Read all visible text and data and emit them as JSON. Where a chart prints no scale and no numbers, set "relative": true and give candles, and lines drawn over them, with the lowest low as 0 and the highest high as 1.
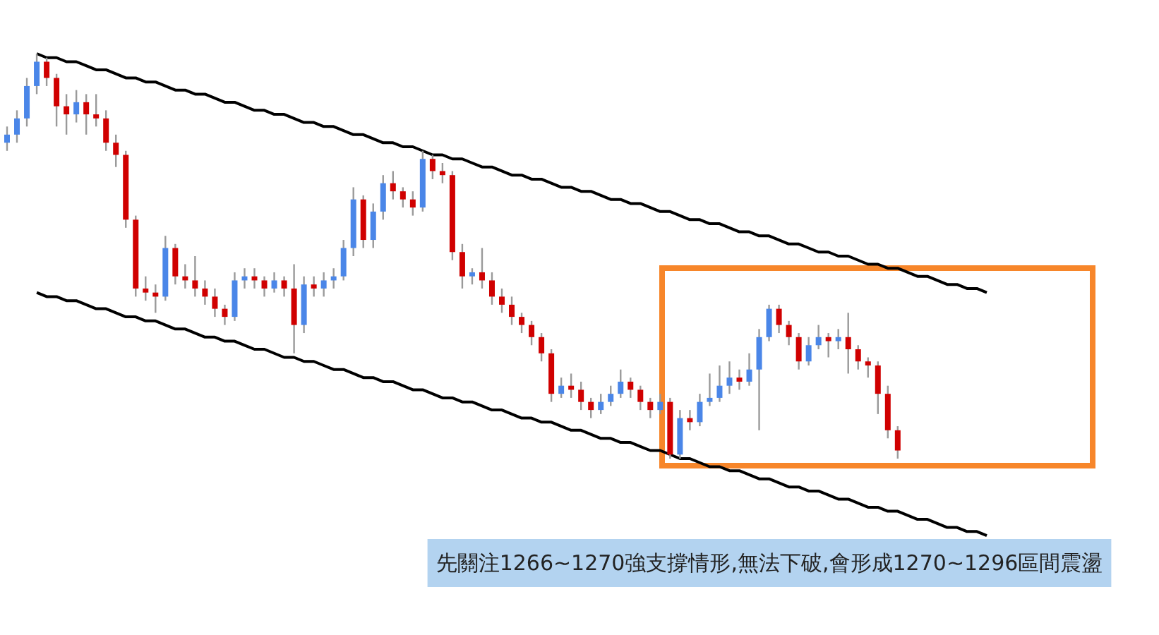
{
  "chart_data": {
    "type": "candlestick",
    "relative": true,
    "categories": [
      null,
      null,
      null,
      null,
      null,
      null,
      null,
      null,
      null,
      null,
      null,
      null,
      null,
      null,
      null,
      null,
      null,
      null,
      null,
      null,
      null,
      null,
      null,
      null,
      null,
      null,
      null,
      null,
      null,
      null,
      null,
      null,
      null,
      null,
      null,
      null,
      null,
      null,
      null,
      null,
      null,
      null,
      null,
      null,
      null,
      null,
      null,
      null,
      null,
      null,
      null,
      null,
      null,
      null,
      null,
      null,
      null,
      null,
      null,
      null,
      null,
      null,
      null,
      null,
      null,
      null,
      null,
      null,
      null,
      null,
      null,
      null,
      null,
      null,
      null,
      null,
      null,
      null,
      null,
      null,
      null,
      null,
      null,
      null,
      null,
      null,
      null,
      null,
      null,
      null,
      null,
      null,
      null,
      null,
      null,
      null,
      null,
      null,
      null,
      null
    ],
    "ohlc": [
      [
        0.78,
        0.82,
        0.76,
        0.8
      ],
      [
        0.8,
        0.86,
        0.78,
        0.84
      ],
      [
        0.84,
        0.94,
        0.82,
        0.92
      ],
      [
        0.92,
        1.0,
        0.9,
        0.98
      ],
      [
        0.98,
        0.99,
        0.92,
        0.94
      ],
      [
        0.94,
        0.95,
        0.82,
        0.87
      ],
      [
        0.87,
        0.9,
        0.8,
        0.85
      ],
      [
        0.85,
        0.91,
        0.83,
        0.88
      ],
      [
        0.88,
        0.9,
        0.8,
        0.85
      ],
      [
        0.85,
        0.9,
        0.82,
        0.84
      ],
      [
        0.84,
        0.86,
        0.76,
        0.78
      ],
      [
        0.78,
        0.8,
        0.72,
        0.75
      ],
      [
        0.75,
        0.76,
        0.57,
        0.59
      ],
      [
        0.59,
        0.6,
        0.4,
        0.42
      ],
      [
        0.42,
        0.45,
        0.39,
        0.41
      ],
      [
        0.41,
        0.43,
        0.36,
        0.4
      ],
      [
        0.4,
        0.55,
        0.39,
        0.52
      ],
      [
        0.52,
        0.53,
        0.43,
        0.45
      ],
      [
        0.45,
        0.48,
        0.42,
        0.44
      ],
      [
        0.44,
        0.5,
        0.4,
        0.42
      ],
      [
        0.42,
        0.44,
        0.38,
        0.4
      ],
      [
        0.4,
        0.42,
        0.35,
        0.37
      ],
      [
        0.37,
        0.38,
        0.33,
        0.35
      ],
      [
        0.35,
        0.46,
        0.34,
        0.44
      ],
      [
        0.44,
        0.47,
        0.42,
        0.45
      ],
      [
        0.45,
        0.47,
        0.42,
        0.44
      ],
      [
        0.44,
        0.45,
        0.4,
        0.42
      ],
      [
        0.42,
        0.46,
        0.41,
        0.44
      ],
      [
        0.44,
        0.45,
        0.4,
        0.42
      ],
      [
        0.42,
        0.48,
        0.26,
        0.33
      ],
      [
        0.33,
        0.45,
        0.31,
        0.43
      ],
      [
        0.43,
        0.45,
        0.4,
        0.42
      ],
      [
        0.42,
        0.46,
        0.4,
        0.44
      ],
      [
        0.44,
        0.47,
        0.42,
        0.45
      ],
      [
        0.45,
        0.54,
        0.44,
        0.52
      ],
      [
        0.52,
        0.67,
        0.5,
        0.64
      ],
      [
        0.64,
        0.65,
        0.52,
        0.54
      ],
      [
        0.54,
        0.63,
        0.52,
        0.61
      ],
      [
        0.61,
        0.7,
        0.59,
        0.68
      ],
      [
        0.68,
        0.71,
        0.64,
        0.66
      ],
      [
        0.66,
        0.67,
        0.62,
        0.64
      ],
      [
        0.64,
        0.66,
        0.6,
        0.62
      ],
      [
        0.62,
        0.76,
        0.61,
        0.74
      ],
      [
        0.74,
        0.75,
        0.69,
        0.71
      ],
      [
        0.71,
        0.73,
        0.68,
        0.7
      ],
      [
        0.7,
        0.71,
        0.49,
        0.51
      ],
      [
        0.51,
        0.53,
        0.42,
        0.45
      ],
      [
        0.45,
        0.47,
        0.43,
        0.46
      ],
      [
        0.46,
        0.52,
        0.42,
        0.44
      ],
      [
        0.44,
        0.46,
        0.38,
        0.4
      ],
      [
        0.4,
        0.42,
        0.36,
        0.38
      ],
      [
        0.38,
        0.4,
        0.33,
        0.35
      ],
      [
        0.35,
        0.36,
        0.31,
        0.33
      ],
      [
        0.33,
        0.34,
        0.28,
        0.3
      ],
      [
        0.3,
        0.31,
        0.24,
        0.26
      ],
      [
        0.26,
        0.27,
        0.14,
        0.16
      ],
      [
        0.16,
        0.2,
        0.15,
        0.18
      ],
      [
        0.18,
        0.21,
        0.15,
        0.17
      ],
      [
        0.17,
        0.19,
        0.12,
        0.14
      ],
      [
        0.14,
        0.15,
        0.1,
        0.12
      ],
      [
        0.12,
        0.16,
        0.11,
        0.14
      ],
      [
        0.14,
        0.18,
        0.13,
        0.16
      ],
      [
        0.16,
        0.22,
        0.15,
        0.19
      ],
      [
        0.19,
        0.2,
        0.15,
        0.17
      ],
      [
        0.17,
        0.18,
        0.12,
        0.14
      ],
      [
        0.14,
        0.15,
        0.1,
        0.12
      ],
      [
        0.12,
        0.16,
        0.11,
        0.14
      ],
      [
        0.14,
        0.15,
        0.0,
        0.01
      ],
      [
        0.01,
        0.12,
        0.0,
        0.1
      ],
      [
        0.1,
        0.12,
        0.07,
        0.09
      ],
      [
        0.09,
        0.16,
        0.08,
        0.14
      ],
      [
        0.14,
        0.21,
        0.13,
        0.15
      ],
      [
        0.15,
        0.23,
        0.14,
        0.18
      ],
      [
        0.18,
        0.24,
        0.16,
        0.2
      ],
      [
        0.2,
        0.22,
        0.17,
        0.19
      ],
      [
        0.19,
        0.26,
        0.18,
        0.22
      ],
      [
        0.22,
        0.32,
        0.07,
        0.3
      ],
      [
        0.3,
        0.38,
        0.29,
        0.37
      ],
      [
        0.37,
        0.38,
        0.31,
        0.33
      ],
      [
        0.33,
        0.34,
        0.28,
        0.3
      ],
      [
        0.3,
        0.31,
        0.22,
        0.24
      ],
      [
        0.24,
        0.3,
        0.23,
        0.28
      ],
      [
        0.28,
        0.33,
        0.27,
        0.3
      ],
      [
        0.3,
        0.31,
        0.25,
        0.29
      ],
      [
        0.29,
        0.32,
        0.27,
        0.3
      ],
      [
        0.3,
        0.36,
        0.21,
        0.27
      ],
      [
        0.27,
        0.28,
        0.22,
        0.24
      ],
      [
        0.24,
        0.25,
        0.2,
        0.23
      ],
      [
        0.23,
        0.24,
        0.11,
        0.16
      ],
      [
        0.16,
        0.18,
        0.05,
        0.07
      ],
      [
        0.07,
        0.08,
        0.0,
        0.02
      ],
      null,
      null,
      null,
      null,
      null,
      null,
      null,
      null,
      null
    ],
    "colors": [
      "#4a86e8",
      "#4a86e8",
      "#4a86e8",
      "#4a86e8",
      "#d00000",
      "#d00000",
      "#d00000",
      "#4a86e8",
      "#d00000",
      "#d00000",
      "#d00000",
      "#d00000",
      "#d00000",
      "#d00000",
      "#d00000",
      "#d00000",
      "#4a86e8",
      "#d00000",
      "#d00000",
      "#d00000",
      "#d00000",
      "#d00000",
      "#d00000",
      "#4a86e8",
      "#4a86e8",
      "#d00000",
      "#d00000",
      "#4a86e8",
      "#d00000",
      "#d00000",
      "#4a86e8",
      "#d00000",
      "#4a86e8",
      "#4a86e8",
      "#4a86e8",
      "#4a86e8",
      "#d00000",
      "#4a86e8",
      "#4a86e8",
      "#d00000",
      "#d00000",
      "#d00000",
      "#4a86e8",
      "#d00000",
      "#d00000",
      "#d00000",
      "#d00000",
      "#4a86e8",
      "#d00000",
      "#d00000",
      "#d00000",
      "#d00000",
      "#d00000",
      "#d00000",
      "#d00000",
      "#d00000",
      "#4a86e8",
      "#d00000",
      "#d00000",
      "#d00000",
      "#4a86e8",
      "#4a86e8",
      "#4a86e8",
      "#d00000",
      "#d00000",
      "#d00000",
      "#4a86e8",
      "#d00000",
      "#4a86e8",
      "#d00000",
      "#4a86e8",
      "#4a86e8",
      "#4a86e8",
      "#4a86e8",
      "#d00000",
      "#4a86e8",
      "#4a86e8",
      "#4a86e8",
      "#d00000",
      "#d00000",
      "#d00000",
      "#4a86e8",
      "#4a86e8",
      "#d00000",
      "#4a86e8",
      "#d00000",
      "#d00000",
      "#d00000",
      "#d00000",
      "#d00000",
      "#d00000",
      null,
      null,
      null,
      null,
      null,
      null,
      null,
      null,
      null
    ],
    "series": [
      {
        "type": "line",
        "color": "#000000",
        "values": [
          null,
          null,
          null,
          1.0,
          0.99,
          0.99,
          0.98,
          0.98,
          0.97,
          0.96,
          0.96,
          0.95,
          0.94,
          0.94,
          0.93,
          0.93,
          0.92,
          0.91,
          0.91,
          0.9,
          0.9,
          0.89,
          0.88,
          0.88,
          0.87,
          0.86,
          0.86,
          0.85,
          0.85,
          0.84,
          0.83,
          0.83,
          0.82,
          0.82,
          0.81,
          0.8,
          0.8,
          0.79,
          0.78,
          0.78,
          0.77,
          0.77,
          0.76,
          0.75,
          0.75,
          0.74,
          0.74,
          0.73,
          0.72,
          0.72,
          0.71,
          0.7,
          0.7,
          0.69,
          0.69,
          0.68,
          0.67,
          0.67,
          0.66,
          0.66,
          0.65,
          0.64,
          0.64,
          0.63,
          0.63,
          0.62,
          0.61,
          0.61,
          0.6,
          0.59,
          0.59,
          0.58,
          0.58,
          0.57,
          0.56,
          0.56,
          0.55,
          0.55,
          0.54,
          0.53,
          0.53,
          0.52,
          0.51,
          0.51,
          0.5,
          0.5,
          0.49,
          0.48,
          0.48,
          0.47,
          0.47,
          0.46,
          0.45,
          0.45,
          0.44,
          0.43,
          0.43,
          0.42,
          0.42,
          0.41
        ]
      },
      {
        "type": "line",
        "color": "#000000",
        "values": [
          null,
          null,
          null,
          0.41,
          0.4,
          0.4,
          0.39,
          0.39,
          0.38,
          0.37,
          0.37,
          0.36,
          0.35,
          0.35,
          0.34,
          0.34,
          0.33,
          0.32,
          0.32,
          0.31,
          0.3,
          0.3,
          0.29,
          0.29,
          0.28,
          0.27,
          0.27,
          0.26,
          0.25,
          0.25,
          0.24,
          0.24,
          0.23,
          0.22,
          0.22,
          0.21,
          0.2,
          0.2,
          0.19,
          0.19,
          0.18,
          0.17,
          0.17,
          0.16,
          0.15,
          0.15,
          0.14,
          0.14,
          0.13,
          0.12,
          0.12,
          0.11,
          0.1,
          0.1,
          0.09,
          0.09,
          0.08,
          0.07,
          0.07,
          0.06,
          0.05,
          0.05,
          0.04,
          0.04,
          0.03,
          0.02,
          0.02,
          0.01,
          0.0,
          0.0,
          -0.01,
          -0.02,
          -0.02,
          -0.03,
          -0.03,
          -0.04,
          -0.05,
          -0.05,
          -0.06,
          -0.07,
          -0.07,
          -0.08,
          -0.08,
          -0.09,
          -0.1,
          -0.1,
          -0.11,
          -0.12,
          -0.12,
          -0.13,
          -0.13,
          -0.14,
          -0.15,
          -0.15,
          -0.16,
          -0.17,
          -0.17,
          -0.18,
          -0.18,
          -0.19
        ]
      }
    ],
    "annotations": [
      "先關注1266~1270強支撐情形,無法下破,會形成1270~1296區間震盪"
    ]
  }
}
